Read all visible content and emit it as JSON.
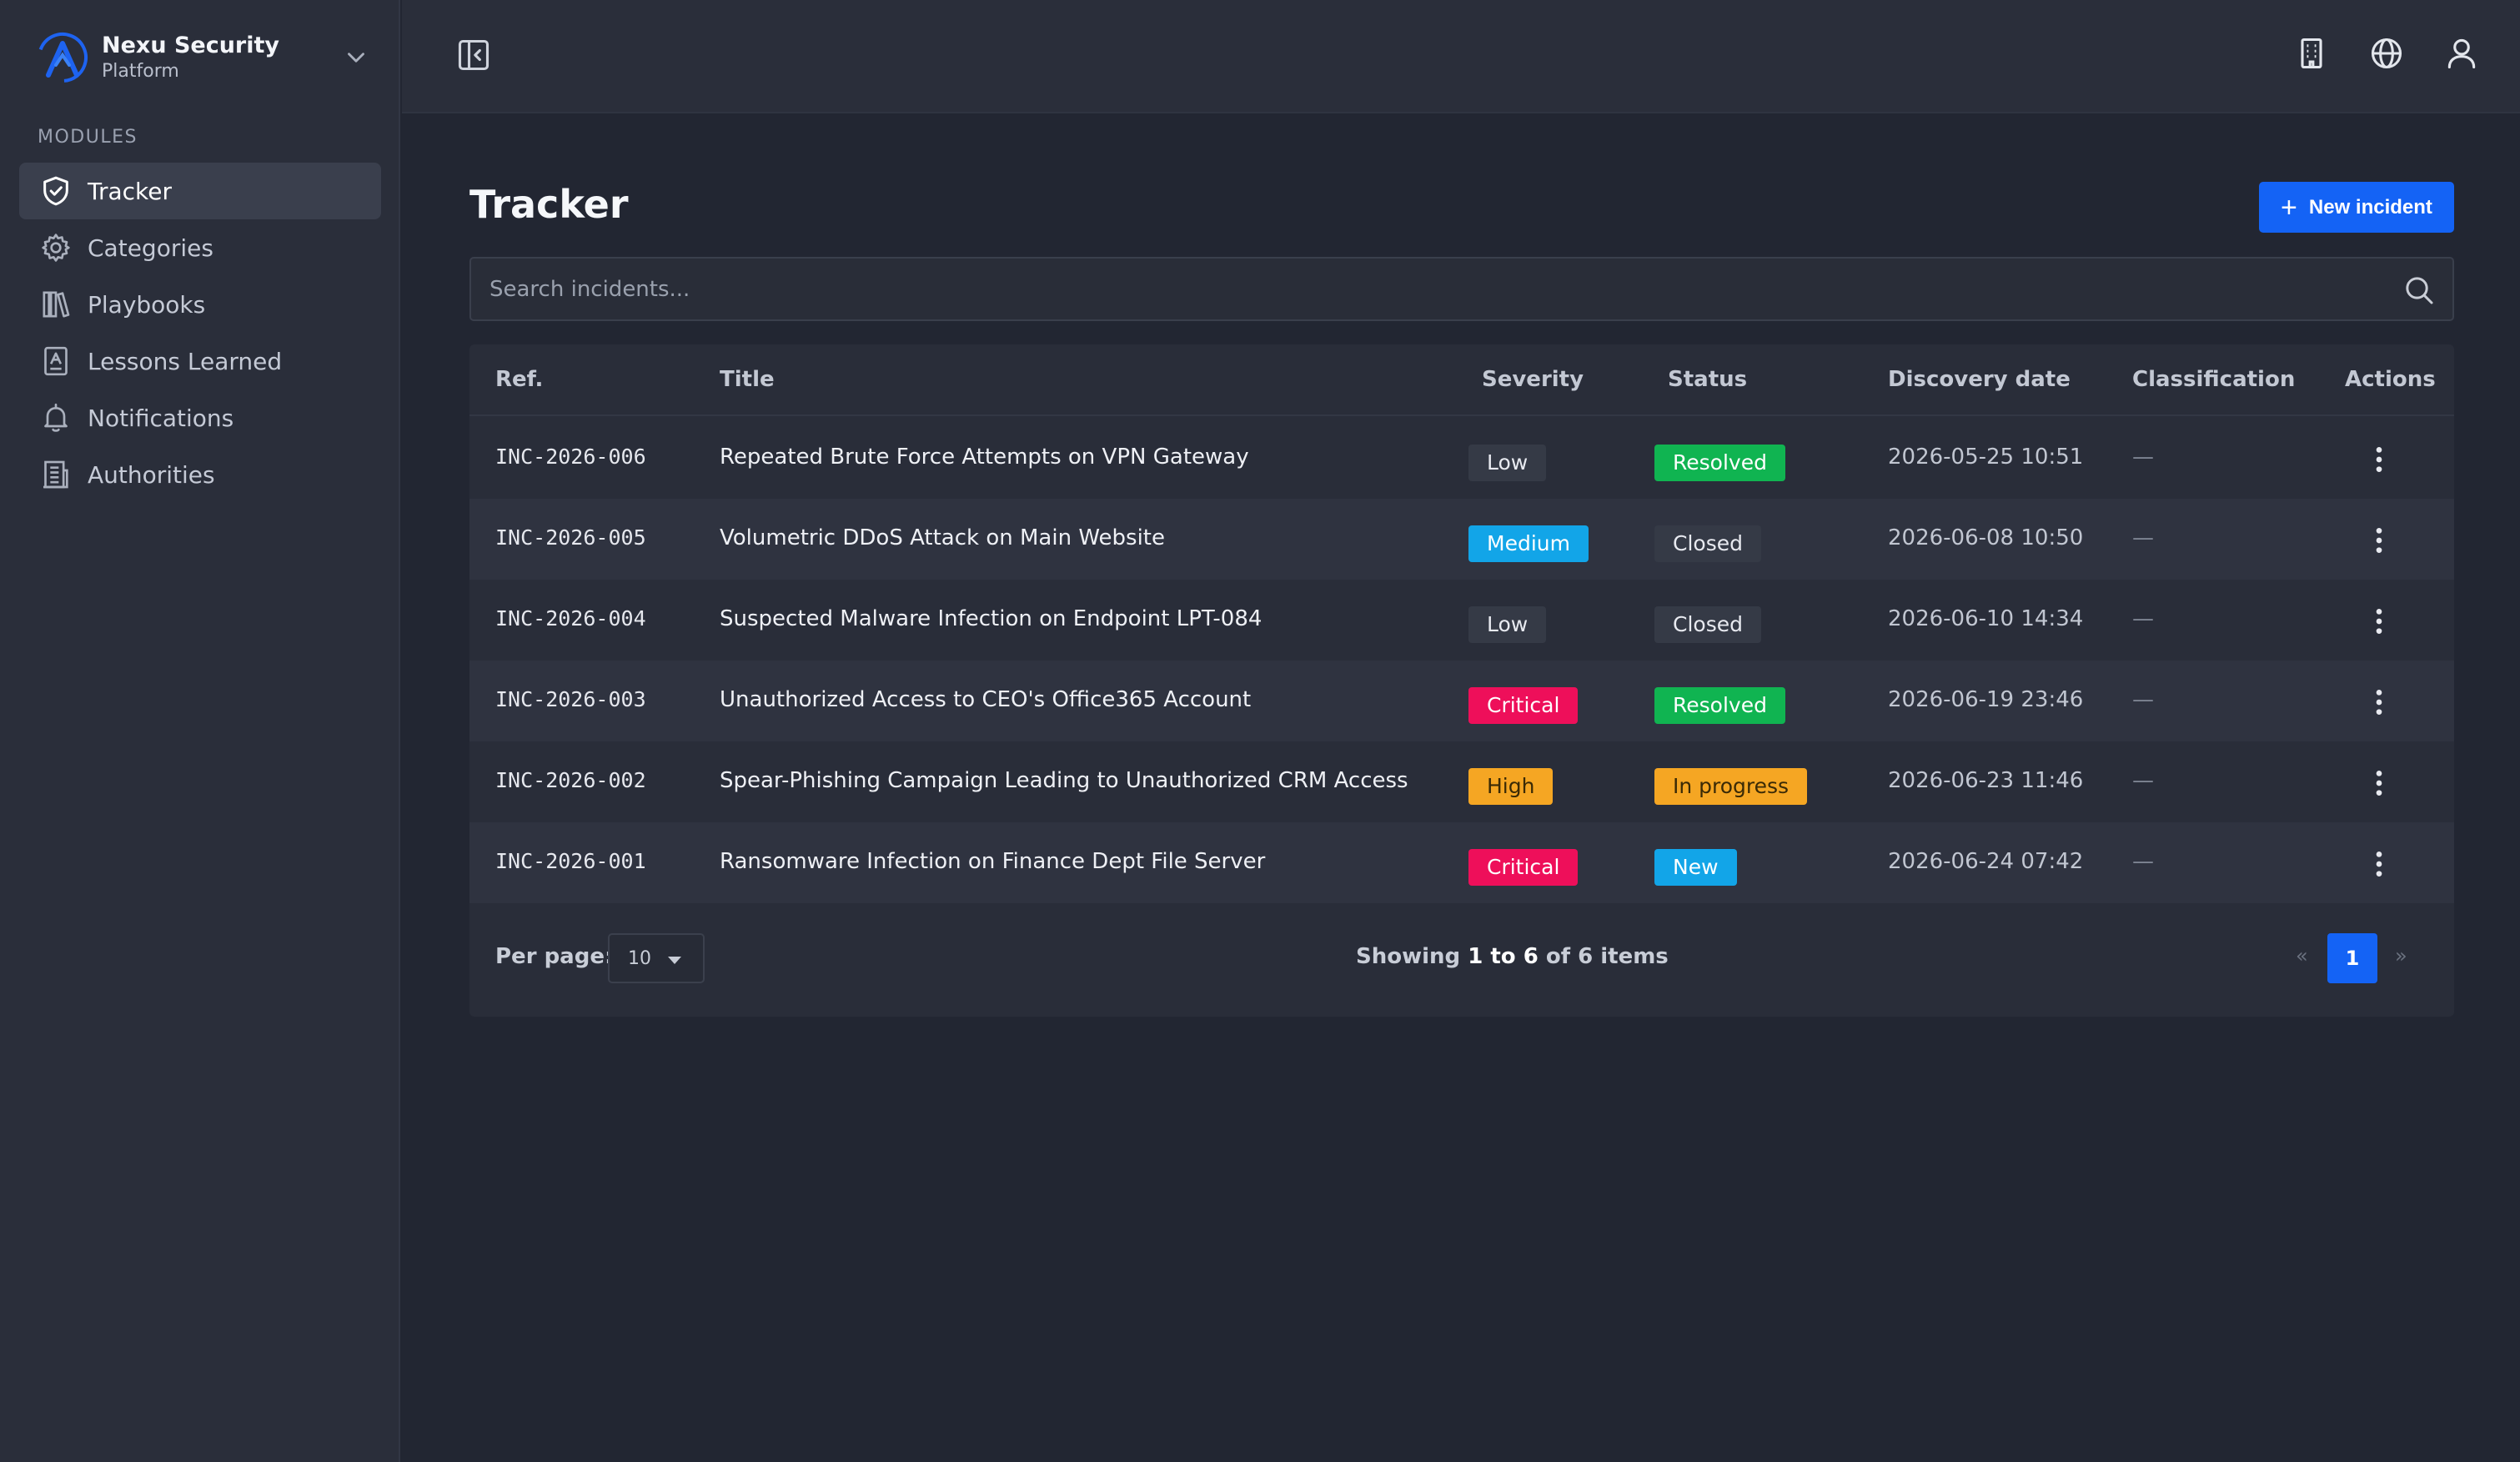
{
  "brand": {
    "name": "Nexu Security",
    "subtitle": "Platform"
  },
  "sidebar": {
    "section_label": "MODULES",
    "items": [
      {
        "label": "Tracker",
        "icon": "shield-check-icon",
        "active": true
      },
      {
        "label": "Categories",
        "icon": "gear-icon",
        "active": false
      },
      {
        "label": "Playbooks",
        "icon": "books-icon",
        "active": false
      },
      {
        "label": "Lessons Learned",
        "icon": "notebook-icon",
        "active": false
      },
      {
        "label": "Notifications",
        "icon": "bell-icon",
        "active": false
      },
      {
        "label": "Authorities",
        "icon": "building-icon",
        "active": false
      }
    ]
  },
  "topbar": {
    "icons": [
      "collapse-sidebar-icon",
      "building-icon",
      "globe-icon",
      "user-icon"
    ]
  },
  "page": {
    "title": "Tracker",
    "new_button_label": "New incident",
    "search_placeholder": "Search incidents..."
  },
  "table": {
    "columns": [
      "Ref.",
      "Title",
      "Severity",
      "Status",
      "Discovery date",
      "Classification",
      "Actions"
    ],
    "rows": [
      {
        "ref": "INC-2026-006",
        "title": "Repeated Brute Force Attempts on VPN Gateway",
        "severity": "Low",
        "status": "Resolved",
        "date": "2026-05-25 10:51",
        "classification": "—"
      },
      {
        "ref": "INC-2026-005",
        "title": "Volumetric DDoS Attack on Main Website",
        "severity": "Medium",
        "status": "Closed",
        "date": "2026-06-08 10:50",
        "classification": "—"
      },
      {
        "ref": "INC-2026-004",
        "title": "Suspected Malware Infection on Endpoint LPT-084",
        "severity": "Low",
        "status": "Closed",
        "date": "2026-06-10 14:34",
        "classification": "—"
      },
      {
        "ref": "INC-2026-003",
        "title": "Unauthorized Access to CEO's Office365 Account",
        "severity": "Critical",
        "status": "Resolved",
        "date": "2026-06-19 23:46",
        "classification": "—"
      },
      {
        "ref": "INC-2026-002",
        "title": "Spear-Phishing Campaign Leading to Unauthorized CRM Access",
        "severity": "High",
        "status": "In progress",
        "date": "2026-06-23 11:46",
        "classification": "—"
      },
      {
        "ref": "INC-2026-001",
        "title": "Ransomware Infection on Finance Dept File Server",
        "severity": "Critical",
        "status": "New",
        "date": "2026-06-24 07:42",
        "classification": "—"
      }
    ]
  },
  "badge_colors": {
    "Low": "#353a46",
    "Medium": "#12a5e8",
    "High": "#f5a623",
    "Critical": "#ee0f5a",
    "Resolved": "#10b451",
    "Closed": "#353a46",
    "In progress": "#f5a623",
    "New": "#12a5e8"
  },
  "badge_text_colors": {
    "Low": "#e8eaf0",
    "Closed": "#e8eaf0",
    "High": "#3a2a06",
    "In progress": "#3a2a06"
  },
  "footer": {
    "per_page_label": "Per page:",
    "per_page_value": "10",
    "showing_prefix": "Showing",
    "showing_range": "1 to 6",
    "showing_suffix": "of 6 items",
    "prev": "«",
    "current_page": "1",
    "next": "»"
  },
  "colors": {
    "accent": "#1463f5",
    "background": "#222632",
    "sidebar": "#2a2e3a"
  }
}
